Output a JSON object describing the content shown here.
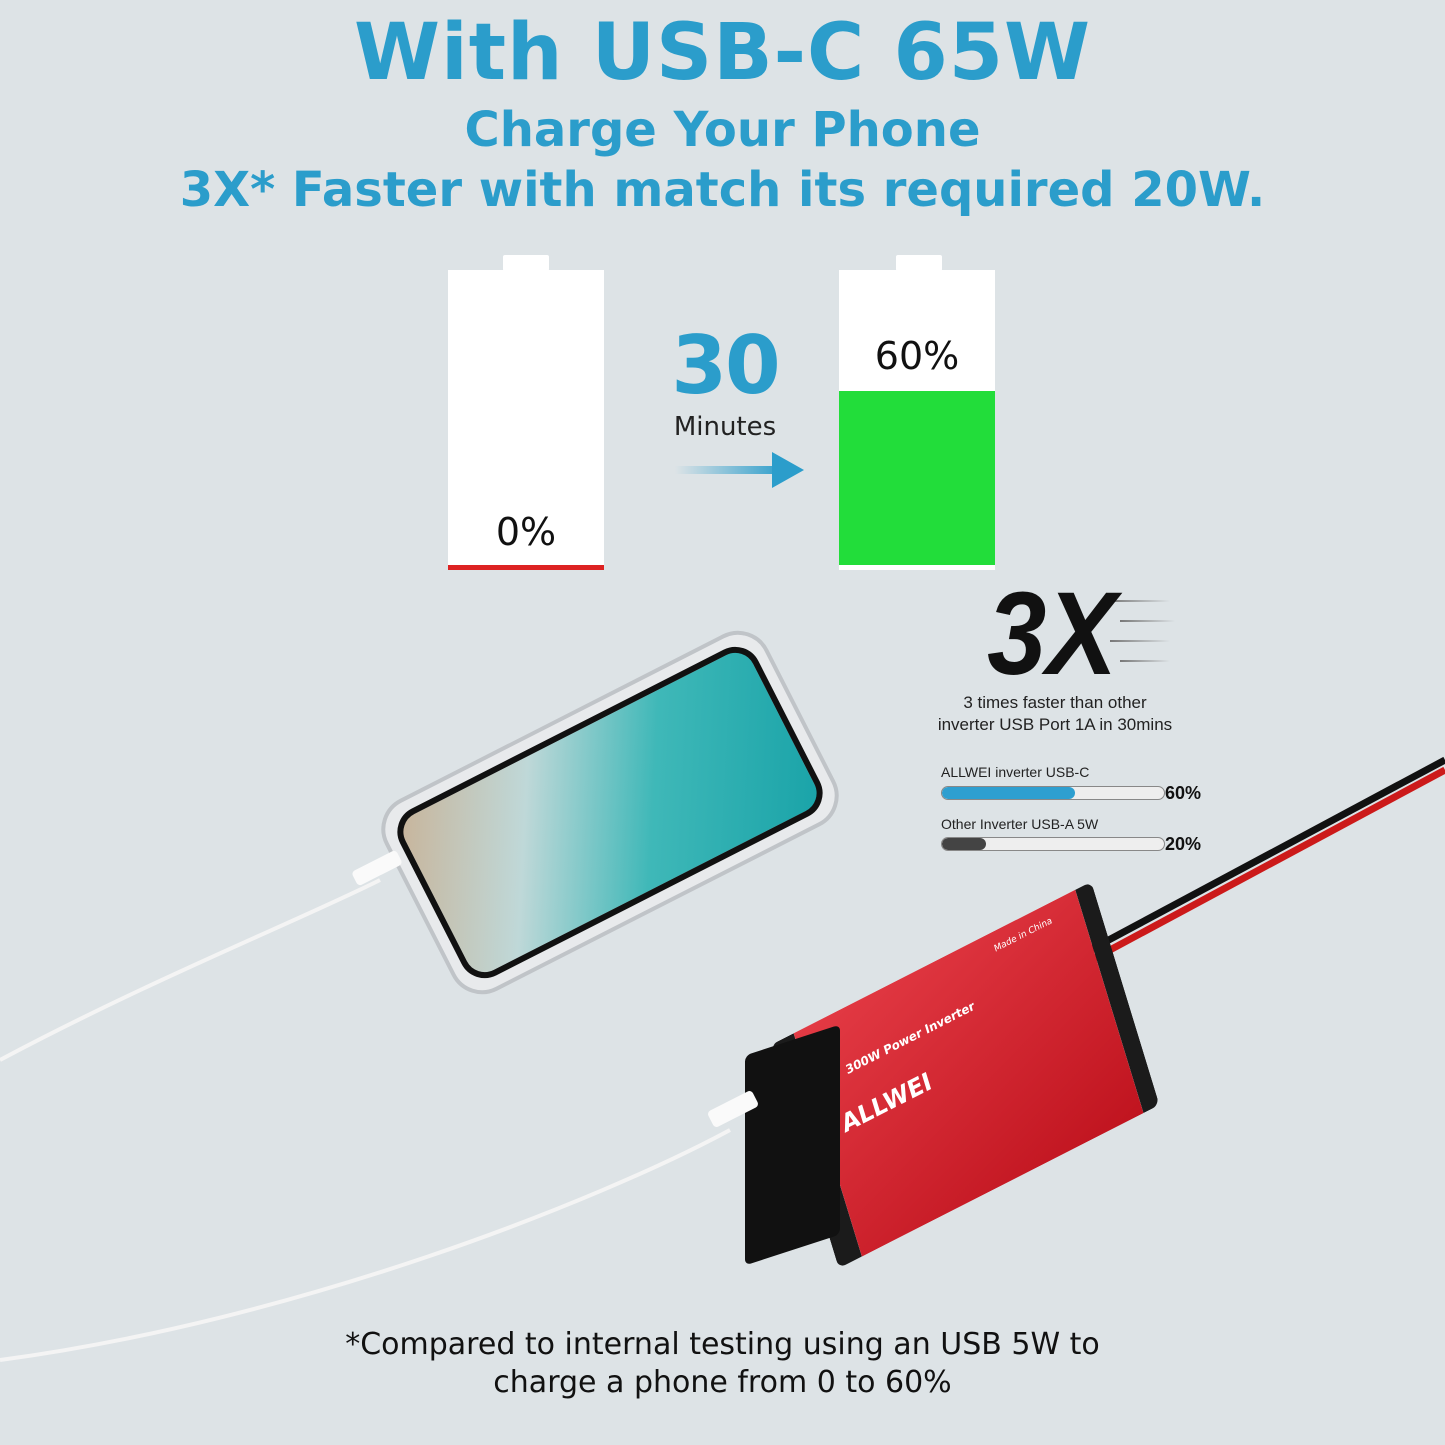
{
  "headline": {
    "title": "With USB-C 65W",
    "line1": "Charge Your Phone",
    "line2": "3X* Faster with match its required 20W."
  },
  "batteries": {
    "before": {
      "label": "0%",
      "level": 0
    },
    "after": {
      "label": "60%",
      "level": 60
    },
    "time_value": "30",
    "time_unit": "Minutes"
  },
  "comparison": {
    "big": "3X",
    "desc1": "3 times faster than other",
    "desc2": "inverter USB Port 1A in 30mins",
    "bars": [
      {
        "label": "ALLWEI inverter USB-C",
        "value": "60%",
        "level": 60,
        "color": "#2e9fd0"
      },
      {
        "label": "Other Inverter USB-A  5W",
        "value": "20%",
        "level": 20,
        "color": "#444444"
      }
    ]
  },
  "product": {
    "brand": "ALLWEI",
    "model": "300W Power Inverter",
    "origin": "Made in China",
    "color": "#d8202f"
  },
  "footnote": {
    "line1": "*Compared to internal testing using an USB 5W to",
    "line2": "charge a phone from 0 to 60%"
  },
  "colors": {
    "accent": "#2b9dcb",
    "battery_green": "#22dd3a",
    "battery_red": "#dd2222",
    "background": "#dde3e6"
  }
}
